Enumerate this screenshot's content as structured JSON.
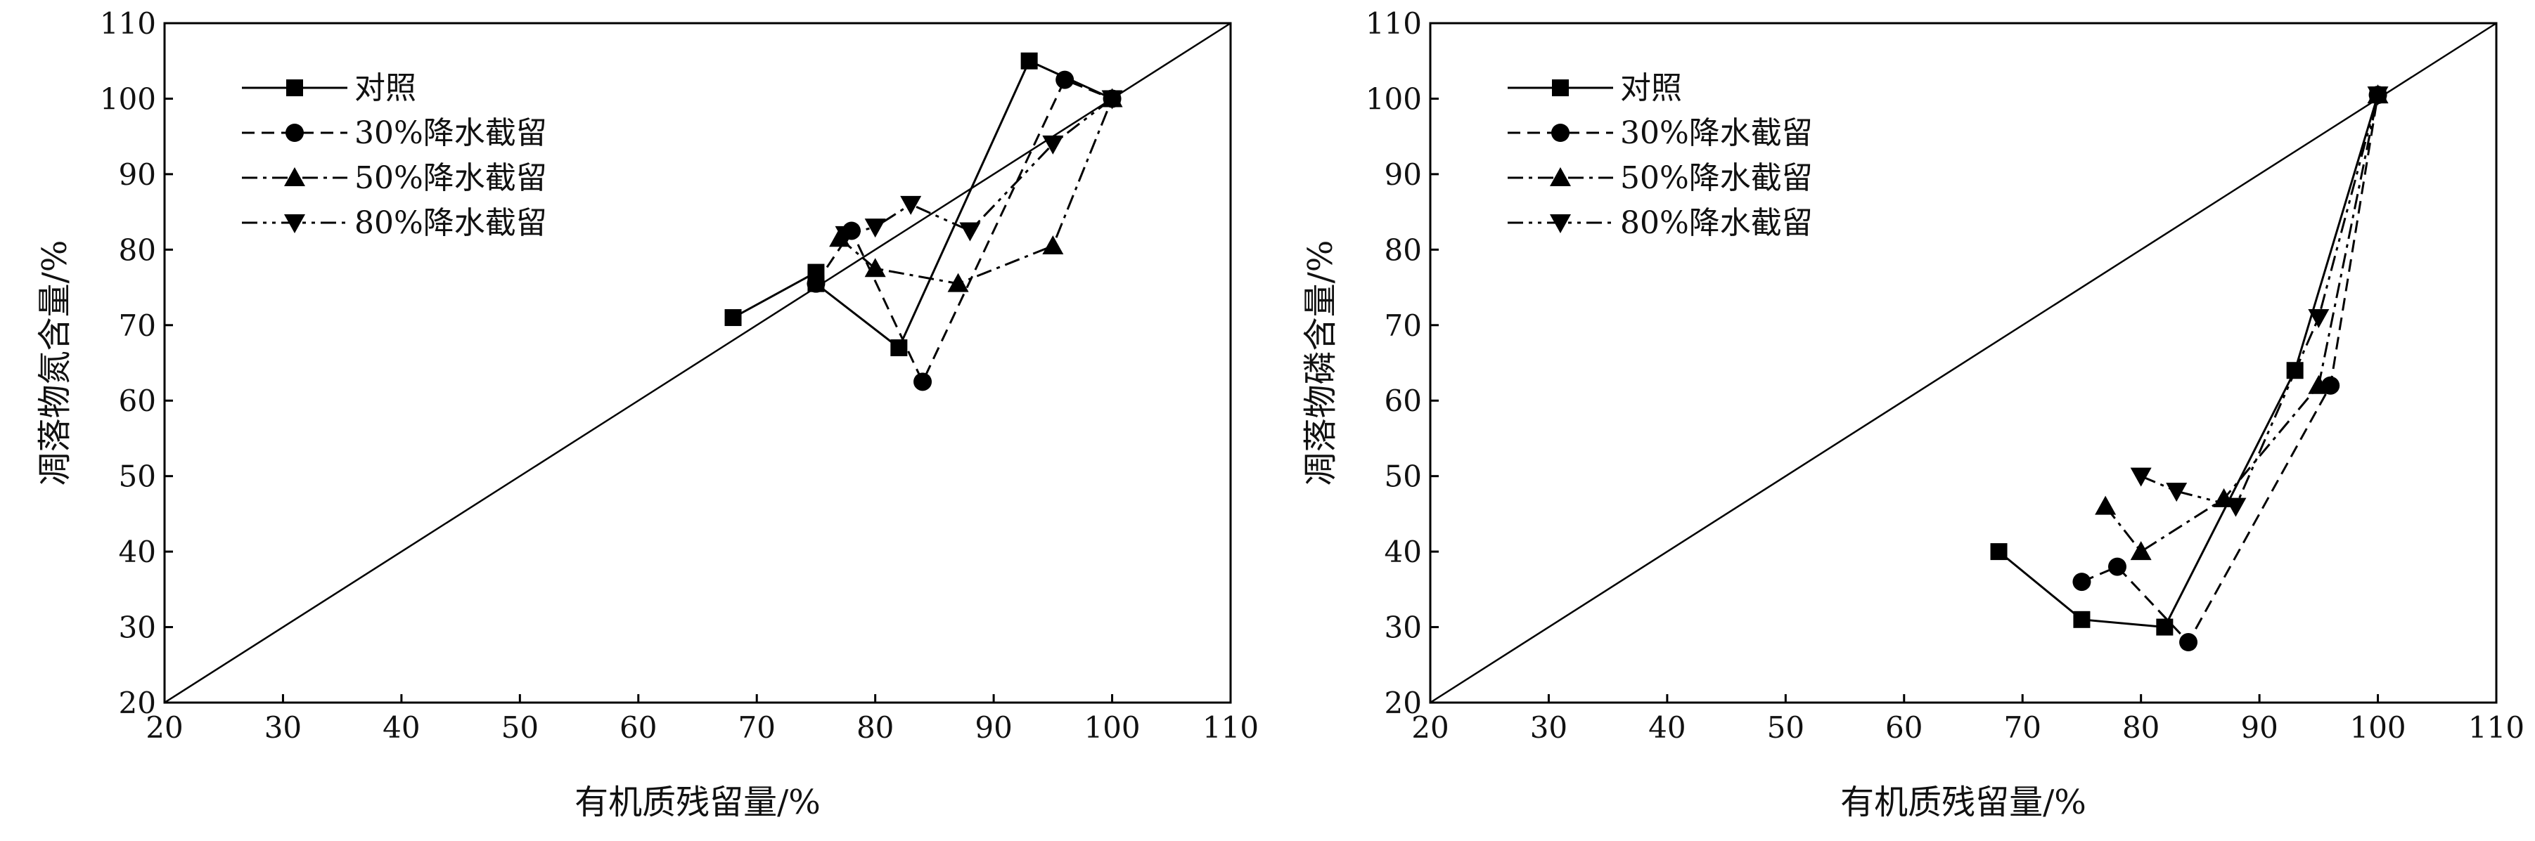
{
  "chart_data": [
    {
      "type": "line",
      "xlabel": "有机质残留量/%",
      "ylabel": "凋落物氮含量/%",
      "xlim": [
        20,
        110
      ],
      "ylim": [
        20,
        110
      ],
      "xticks": [
        20,
        30,
        40,
        50,
        60,
        70,
        80,
        90,
        100,
        110
      ],
      "yticks": [
        20,
        30,
        40,
        50,
        60,
        70,
        80,
        90,
        100,
        110
      ],
      "reference_line": "y = x",
      "legend_position": "top-left",
      "series": [
        {
          "name": "对照",
          "marker": "square",
          "dash": "solid",
          "points": [
            [
              68,
              71
            ],
            [
              75,
              77
            ],
            [
              75,
              75.5
            ],
            [
              82,
              67
            ],
            [
              93,
              105
            ],
            [
              100,
              100
            ]
          ]
        },
        {
          "name": "30%降水截留",
          "marker": "circle",
          "dash": "dashed",
          "points": [
            [
              75,
              75.5
            ],
            [
              78,
              82.5
            ],
            [
              84,
              62.5
            ],
            [
              96,
              102.5
            ],
            [
              100,
              100
            ]
          ]
        },
        {
          "name": "50%降水截留",
          "marker": "triangle-up",
          "dash": "dash-dot",
          "points": [
            [
              77,
              81.5
            ],
            [
              80,
              77.5
            ],
            [
              87,
              75.5
            ],
            [
              95,
              80.5
            ],
            [
              100,
              100
            ]
          ]
        },
        {
          "name": "80%降水截留",
          "marker": "triangle-down",
          "dash": "dash-dot-dot",
          "points": [
            [
              77.5,
              82
            ],
            [
              80,
              83
            ],
            [
              83,
              86
            ],
            [
              88,
              82.5
            ],
            [
              95,
              94
            ],
            [
              100,
              100
            ]
          ]
        }
      ]
    },
    {
      "type": "line",
      "xlabel": "有机质残留量/%",
      "ylabel": "凋落物磷含量/%",
      "xlim": [
        20,
        110
      ],
      "ylim": [
        20,
        110
      ],
      "xticks": [
        20,
        30,
        40,
        50,
        60,
        70,
        80,
        90,
        100,
        110
      ],
      "yticks": [
        20,
        30,
        40,
        50,
        60,
        70,
        80,
        90,
        100,
        110
      ],
      "reference_line": "y = x",
      "legend_position": "top-left",
      "series": [
        {
          "name": "对照",
          "marker": "square",
          "dash": "solid",
          "points": [
            [
              68,
              40
            ],
            [
              75,
              31
            ],
            [
              82,
              30
            ],
            [
              93,
              64
            ],
            [
              100,
              100.5
            ]
          ]
        },
        {
          "name": "30%降水截留",
          "marker": "circle",
          "dash": "dashed",
          "points": [
            [
              75,
              36
            ],
            [
              78,
              38
            ],
            [
              84,
              28
            ],
            [
              96,
              62
            ],
            [
              100,
              100.5
            ]
          ]
        },
        {
          "name": "50%降水截留",
          "marker": "triangle-up",
          "dash": "dash-dot",
          "points": [
            [
              77,
              46
            ],
            [
              80,
              40
            ],
            [
              87,
              47
            ],
            [
              95,
              62
            ],
            [
              100,
              100.5
            ]
          ]
        },
        {
          "name": "80%降水截留",
          "marker": "triangle-down",
          "dash": "dash-dot-dot",
          "points": [
            [
              80,
              50
            ],
            [
              83,
              48
            ],
            [
              88,
              46
            ],
            [
              95,
              71
            ],
            [
              100,
              100.5
            ]
          ]
        }
      ]
    }
  ]
}
